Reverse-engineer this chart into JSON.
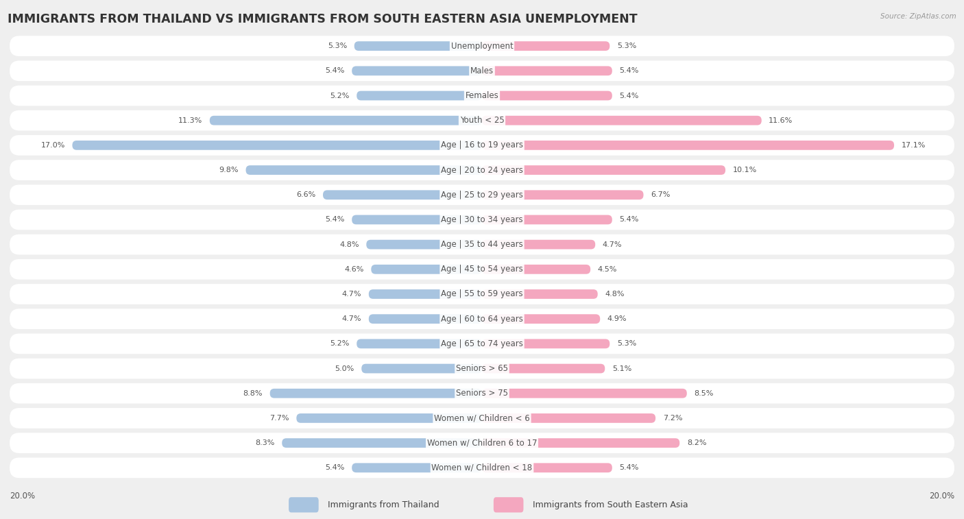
{
  "title": "IMMIGRANTS FROM THAILAND VS IMMIGRANTS FROM SOUTH EASTERN ASIA UNEMPLOYMENT",
  "source": "Source: ZipAtlas.com",
  "categories": [
    "Unemployment",
    "Males",
    "Females",
    "Youth < 25",
    "Age | 16 to 19 years",
    "Age | 20 to 24 years",
    "Age | 25 to 29 years",
    "Age | 30 to 34 years",
    "Age | 35 to 44 years",
    "Age | 45 to 54 years",
    "Age | 55 to 59 years",
    "Age | 60 to 64 years",
    "Age | 65 to 74 years",
    "Seniors > 65",
    "Seniors > 75",
    "Women w/ Children < 6",
    "Women w/ Children 6 to 17",
    "Women w/ Children < 18"
  ],
  "thailand_values": [
    5.3,
    5.4,
    5.2,
    11.3,
    17.0,
    9.8,
    6.6,
    5.4,
    4.8,
    4.6,
    4.7,
    4.7,
    5.2,
    5.0,
    8.8,
    7.7,
    8.3,
    5.4
  ],
  "sea_values": [
    5.3,
    5.4,
    5.4,
    11.6,
    17.1,
    10.1,
    6.7,
    5.4,
    4.7,
    4.5,
    4.8,
    4.9,
    5.3,
    5.1,
    8.5,
    7.2,
    8.2,
    5.4
  ],
  "thailand_color": "#a8c4e0",
  "sea_color": "#f4a7bf",
  "thailand_label": "Immigrants from Thailand",
  "sea_label": "Immigrants from South Eastern Asia",
  "axis_limit": 20.0,
  "background_color": "#efefef",
  "bar_bg_color": "#ffffff",
  "title_fontsize": 12.5,
  "label_fontsize": 8.5,
  "value_fontsize": 8.0,
  "legend_fontsize": 9,
  "axis_label_fontsize": 8.5
}
